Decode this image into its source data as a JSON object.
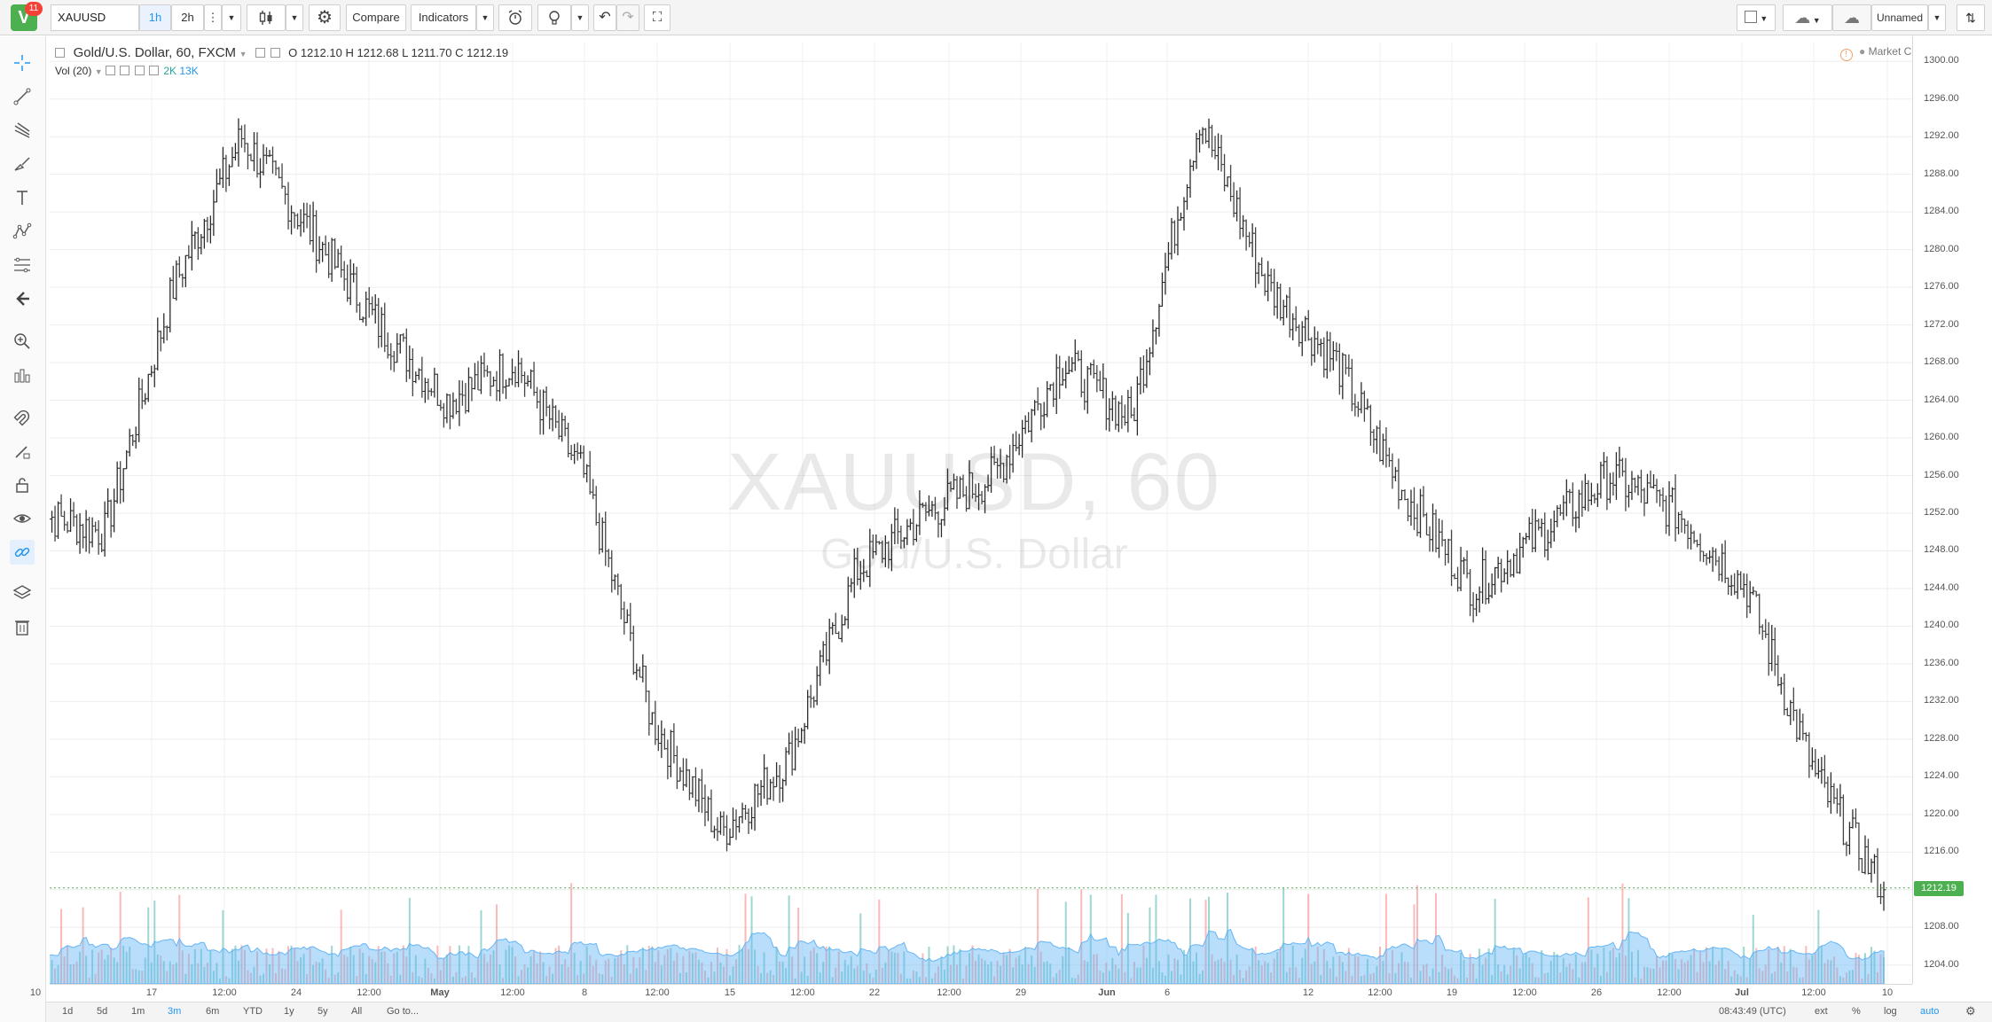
{
  "header": {
    "logo_letter": "V",
    "notification_count": "11",
    "symbol": "XAUUSD",
    "intervals": [
      "1h",
      "2h"
    ],
    "active_interval": "1h",
    "compare_label": "Compare",
    "indicators_label": "Indicators",
    "layout_name": "Unnamed"
  },
  "legend": {
    "title": "Gold/U.S. Dollar, 60, FXCM",
    "o_label": "O",
    "o_value": "1212.10",
    "h_label": "H",
    "h_value": "1212.68",
    "l_label": "L",
    "l_value": "1211.70",
    "c_label": "C",
    "c_value": "1212.19",
    "vol_label": "Vol (20)",
    "vol_value1": "2K",
    "vol_value2": "13K"
  },
  "status": {
    "market": "Market Closed"
  },
  "watermark": {
    "symbol": "XAUUSD, 60",
    "name": "Gold/U.S. Dollar"
  },
  "price_axis": {
    "ticks": [
      "1300.00",
      "1296.00",
      "1292.00",
      "1288.00",
      "1284.00",
      "1280.00",
      "1276.00",
      "1272.00",
      "1268.00",
      "1264.00",
      "1260.00",
      "1256.00",
      "1252.00",
      "1248.00",
      "1244.00",
      "1240.00",
      "1236.00",
      "1232.00",
      "1228.00",
      "1224.00",
      "1220.00",
      "1216.00",
      "1212.00",
      "1208.00",
      "1204.00"
    ],
    "last_price": "1212.19"
  },
  "time_axis": {
    "ticks": [
      "10",
      "17",
      "12:00",
      "24",
      "12:00",
      "May",
      "12:00",
      "8",
      "12:00",
      "15",
      "12:00",
      "22",
      "12:00",
      "29",
      "Jun",
      "6",
      "12",
      "12:00",
      "19",
      "12:00",
      "26",
      "12:00",
      "Jul",
      "12:00",
      "10"
    ]
  },
  "bottom": {
    "ranges": [
      "1d",
      "5d",
      "1m",
      "3m",
      "6m",
      "YTD",
      "1y",
      "5y",
      "All"
    ],
    "active_range": "3m",
    "goto_label": "Go to...",
    "clock": "08:43:49 (UTC)",
    "ext_label": "ext",
    "percent_label": "%",
    "log_label": "log",
    "auto_label": "auto"
  },
  "colors": {
    "up": "#26a69a",
    "down": "#ef5350",
    "bar": "#333333",
    "volume_ma": "#64b5f6",
    "accent": "#2196f3",
    "last_price": "#4caf50"
  },
  "icons": [
    "crosshair-icon",
    "trend-line-icon",
    "pitchfork-icon",
    "brush-icon",
    "text-icon",
    "pattern-icon",
    "fib-icon",
    "back-arrow-icon",
    "zoom-icon",
    "measure-icon",
    "magnet-icon",
    "lock-icon",
    "eye-icon",
    "link-icon",
    "layers-icon",
    "trash-icon"
  ],
  "chart_data": {
    "type": "ohlc",
    "ylim": [
      1202,
      1302
    ],
    "x": [
      "Apr 6",
      "Apr 10",
      "Apr 13",
      "Apr 17",
      "Apr 20",
      "Apr 24",
      "Apr 27",
      "May 1",
      "May 4",
      "May 8",
      "May 11",
      "May 15",
      "May 18",
      "May 22",
      "May 25",
      "May 29",
      "Jun 1",
      "Jun 6",
      "Jun 9",
      "Jun 12",
      "Jun 15",
      "Jun 19",
      "Jun 22",
      "Jun 26",
      "Jun 29",
      "Jul 3",
      "Jul 6",
      "Jul 10"
    ],
    "y": [
      1252,
      1250,
      1276,
      1292,
      1282,
      1272,
      1264,
      1268,
      1256,
      1230,
      1218,
      1226,
      1246,
      1252,
      1256,
      1268,
      1262,
      1294,
      1276,
      1268,
      1254,
      1244,
      1250,
      1256,
      1252,
      1244,
      1224,
      1212
    ],
    "volume_scale": "K"
  }
}
